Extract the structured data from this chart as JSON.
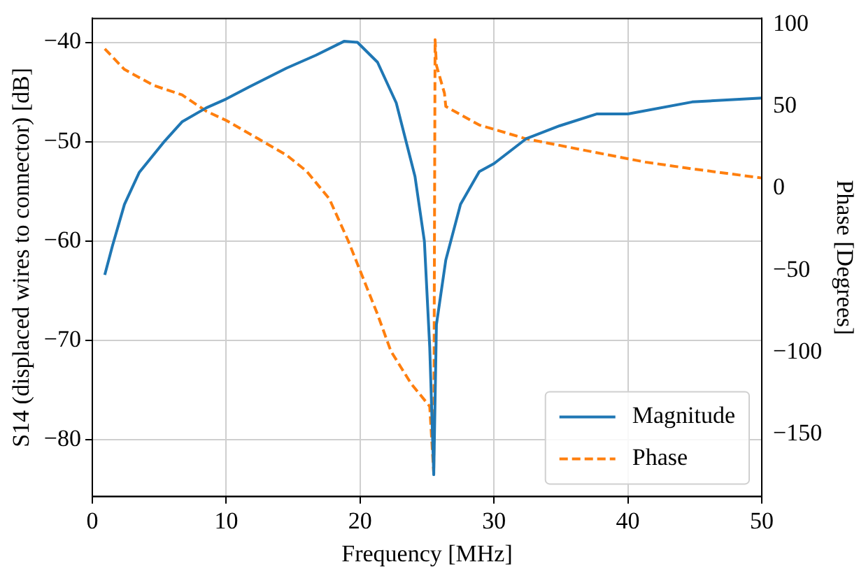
{
  "chart_data": {
    "type": "line",
    "xlabel": "Frequency [MHz]",
    "ylabel": "S14 (displaced wires to connector) [dB]",
    "y2label": "Phase [Degrees]",
    "xlim": [
      0,
      50
    ],
    "xticks": [
      0,
      10,
      20,
      30,
      40,
      50
    ],
    "ylim": [
      -85.7,
      -37.6
    ],
    "yticks": [
      -80,
      -70,
      -60,
      -50,
      -40
    ],
    "y2lim": [
      -188,
      103.6
    ],
    "y2ticks": [
      -150,
      -100,
      -50,
      0,
      50,
      100
    ],
    "grid": true,
    "legend": "bottom right",
    "series": [
      {
        "name": "Magnitude",
        "color": "#1f77b4",
        "line_style": "solid",
        "x": [
          0.93,
          1.5,
          2.4,
          3.5,
          5.3,
          6.7,
          8.5,
          10,
          11.7,
          14.5,
          16.7,
          18.8,
          19.8,
          21.3,
          22.7,
          24.1,
          24.8,
          25.2,
          25.5,
          25.7,
          26.4,
          27.5,
          28.9,
          30,
          32.4,
          34.9,
          37.7,
          40,
          44.8,
          50
        ],
        "values": [
          -63.4,
          -60.5,
          -56.3,
          -53.1,
          -50.1,
          -48,
          -46.6,
          -45.7,
          -44.5,
          -42.6,
          -41.3,
          -39.9,
          -40,
          -42,
          -46.1,
          -53.5,
          -60,
          -70.7,
          -83.5,
          -68.4,
          -61.9,
          -56.3,
          -53,
          -52.2,
          -49.7,
          -48.4,
          -47.2,
          -47.2,
          -46,
          -45.6
        ]
      },
      {
        "name": "Phase",
        "color": "#ff7f0e",
        "line_style": "dashed",
        "axis": "y2",
        "x": [
          0.93,
          2.4,
          4.6,
          6.7,
          8.5,
          10,
          12.4,
          14.5,
          16,
          17.7,
          19.1,
          20.2,
          21.3,
          22.3,
          23.8,
          25.2,
          25.5,
          25.6,
          25.7,
          26.3,
          26.4,
          28.9,
          30,
          32.4,
          37.7,
          41.3,
          44.8,
          50
        ],
        "values": [
          85.1,
          72.5,
          62.7,
          57,
          47.1,
          41.4,
          30.2,
          20.3,
          10.5,
          -6.4,
          -31.8,
          -54.3,
          -76.8,
          -99.3,
          -119,
          -133,
          -174,
          90.7,
          75,
          58,
          49.9,
          38.6,
          36,
          30.2,
          21.7,
          16,
          11.9,
          6.3
        ]
      }
    ]
  }
}
